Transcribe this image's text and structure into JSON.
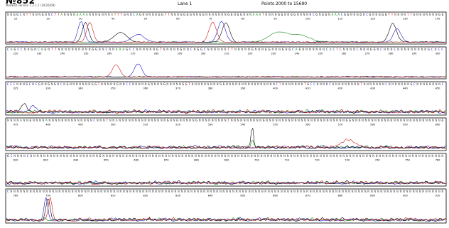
{
  "header": {
    "sample": "№852",
    "software": "MedEdit version 7.2.1.1 (10/26/09)",
    "lane": "Lane 1",
    "points": "Points 2000 to 15690"
  },
  "colors": {
    "A": "#1a8a1a",
    "C": "#1a1acc",
    "G": "#000000",
    "T": "#cc1a1a"
  },
  "chart_data": {
    "type": "line",
    "title": "",
    "xlabel": "",
    "ylabel": "",
    "series_names": [
      "A",
      "C",
      "G",
      "T"
    ],
    "panels": [
      {
        "ticks": [
          "10",
          "20",
          "30",
          "40",
          "50",
          "60",
          "70",
          "80",
          "90",
          "100",
          "110",
          "120",
          "130",
          "140"
        ],
        "sequence": "NNGGCNTTNNNGNNCTTANNNNAAAANNNGNNNATTTGNNCAGNNNNNGGTTNNNGGGGNNGGNNNNNNNGGNGGNNNAAATNNNNGGNNGGNNNNNCGNGGNAAACGGNNGGNCGNNGGGTTNNNNTTNNNNNNNNGG",
        "peaks": [
          {
            "x": 0.17,
            "ch": "C",
            "h": 0.95,
            "w": 0.01
          },
          {
            "x": 0.18,
            "ch": "G",
            "h": 0.9,
            "w": 0.01
          },
          {
            "x": 0.19,
            "ch": "T",
            "h": 0.9,
            "w": 0.01
          },
          {
            "x": 0.47,
            "ch": "T",
            "h": 0.9,
            "w": 0.012
          },
          {
            "x": 0.49,
            "ch": "C",
            "h": 0.95,
            "w": 0.012
          },
          {
            "x": 0.5,
            "ch": "G",
            "h": 0.9,
            "w": 0.012
          },
          {
            "x": 0.88,
            "ch": "G",
            "h": 0.85,
            "w": 0.012
          },
          {
            "x": 0.89,
            "ch": "C",
            "h": 0.6,
            "w": 0.012
          },
          {
            "x": 0.26,
            "ch": "G",
            "h": 0.45,
            "w": 0.02
          },
          {
            "x": 0.3,
            "ch": "C",
            "h": 0.35,
            "w": 0.02
          },
          {
            "x": 0.62,
            "ch": "A",
            "h": 0.45,
            "w": 0.03
          },
          {
            "x": 0.67,
            "ch": "A",
            "h": 0.3,
            "w": 0.03
          }
        ]
      },
      {
        "ticks": [
          "220",
          "230",
          "240",
          "250",
          "260",
          "270",
          "280",
          "290",
          "300",
          "210",
          "220",
          "230",
          "240",
          "250",
          "260",
          "270",
          "280",
          "290",
          "300"
        ],
        "sequence": "CAGCCNNGNCAGNTTNNNNNNNNNNGGNNCNNAAAGCCNNNNNNGTNNNNNGNNCNGGCNNNNNNTTNNNNNGNNNGGNNNGNGCAGNNNNNNNCACTCNNNNCNNNGGNCNNNCNNNNNNNNNGCNCC",
        "peaks": [
          {
            "x": 0.25,
            "ch": "T",
            "h": 0.55,
            "w": 0.012
          },
          {
            "x": 0.3,
            "ch": "C",
            "h": 0.6,
            "w": 0.012
          }
        ]
      },
      {
        "ticks": [
          "325",
          "330",
          "340",
          "350",
          "360",
          "370",
          "380",
          "390",
          "400",
          "410",
          "420",
          "430",
          "440",
          "450"
        ],
        "sequence": "CCCNNNGCNCGNNGNGNCNGNNNNNNNGGTNNNNNGNNCCNNNNNGNNNNGNNNNNGGTNNNNNNNNNGGNNNNNNNNNNNNNNNNCTNNNNNNNTGCCNNNNCNNNNNNNNNTNNNNNNNCNNNNNNNGCNNNGNNNNC",
        "peaks": [
          {
            "x": 0.04,
            "ch": "G",
            "h": 0.35,
            "w": 0.008
          },
          {
            "x": 0.06,
            "ch": "C",
            "h": 0.3,
            "w": 0.008
          }
        ]
      },
      {
        "ticks": [
          "475",
          "480",
          "490",
          "500",
          "510",
          "520",
          "530",
          "540",
          "550",
          "560",
          "570",
          "580",
          "590",
          "600"
        ],
        "sequence": "NNNNANNGNNNNANNNNNNNNNNNNNNCNNNTNNANNNNNNNNNNNNNNNGNNGNNNNNGNNNNNNNNNTNNNNNNNNNNGNNNNNNNNNNNNNNNNNNNNNNNNNGGNNNNNNNNNNNNNNNNNNNNNNNNNNNNG",
        "peaks": [
          {
            "x": 0.56,
            "ch": "G",
            "h": 0.9,
            "w": 0.004
          },
          {
            "x": 0.56,
            "ch": "A",
            "h": 0.3,
            "w": 0.004
          },
          {
            "x": 0.78,
            "ch": "T",
            "h": 0.3,
            "w": 0.025
          }
        ]
      },
      {
        "ticks": [
          "620",
          "630",
          "640",
          "650",
          "660",
          "670",
          "680",
          "690",
          "700",
          "710",
          "720",
          "730",
          "740",
          "750",
          "760"
        ],
        "sequence": "GCNNNNCNNNNNNNNNNNNNNNNNNNNNGNNNNNNNNNNNNNNNNNNNNNNNNNNNNNNNNNNNNNNNNNNNNNNNNNNNNNNNNNNNNNNNNNNNNNNNNNNNNNNNNNNNNNNNNNNNNNNNNNNNNNNNN",
        "peaks": []
      },
      {
        "ticks": [
          "780",
          "790",
          "800",
          "810",
          "820",
          "830",
          "840",
          "850",
          "860",
          "870",
          "880",
          "890",
          "900",
          "910"
        ],
        "sequence": "CNNNNNNNNNNNNNNNNNNNNNNNNNNNNNNNNNNNNNNNNNNNNNNNNNNNNNNNNNNNNNNNNNNNNNNNNNNNNNNNNNNNNNNNNNNNNNNNNNNNNNNNNNNNNNNNNNNNNNNNNNNNNNNNNNNNNNNN",
        "peaks": [
          {
            "x": 0.09,
            "ch": "C",
            "h": 0.95,
            "w": 0.006
          },
          {
            "x": 0.095,
            "ch": "G",
            "h": 0.95,
            "w": 0.006
          },
          {
            "x": 0.1,
            "ch": "T",
            "h": 0.9,
            "w": 0.006
          }
        ]
      }
    ]
  }
}
